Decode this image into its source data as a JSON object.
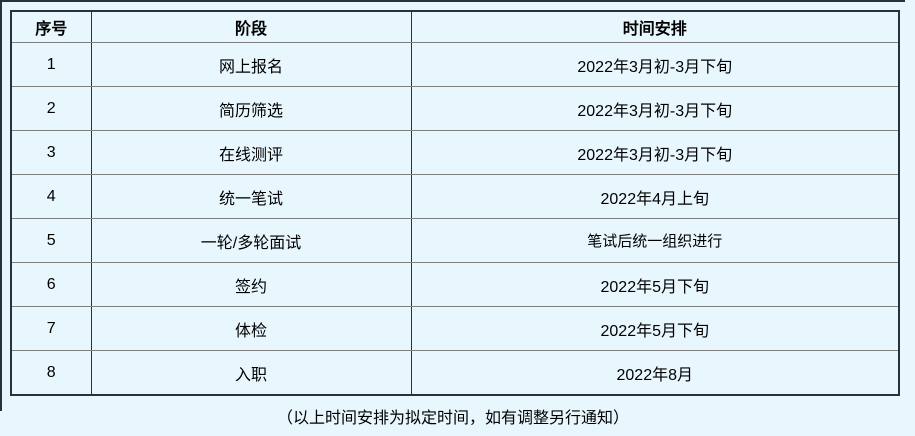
{
  "page": {
    "background_color": "#e8f6fe",
    "frame_color": "#28323c",
    "row_separator_color": "#808080",
    "text_color": "#000000"
  },
  "table": {
    "columns": [
      {
        "label": "序号"
      },
      {
        "label": "阶段"
      },
      {
        "label": "时间安排"
      }
    ],
    "rows": [
      {
        "no": "1",
        "stage": "网上报名",
        "time": "2022年3月初-3月下旬"
      },
      {
        "no": "2",
        "stage": "简历筛选",
        "time": "2022年3月初-3月下旬"
      },
      {
        "no": "3",
        "stage": "在线测评",
        "time": "2022年3月初-3月下旬"
      },
      {
        "no": "4",
        "stage": "统一笔试",
        "time": "2022年4月上旬"
      },
      {
        "no": "5",
        "stage": "一轮/多轮面试",
        "time": "笔试后统一组织进行"
      },
      {
        "no": "6",
        "stage": "签约",
        "time": "2022年5月下旬"
      },
      {
        "no": "7",
        "stage": "体检",
        "time": "2022年5月下旬"
      },
      {
        "no": "8",
        "stage": "入职",
        "time": "2022年8月"
      }
    ]
  },
  "footer": {
    "note": "（以上时间安排为拟定时间，如有调整另行通知）"
  }
}
